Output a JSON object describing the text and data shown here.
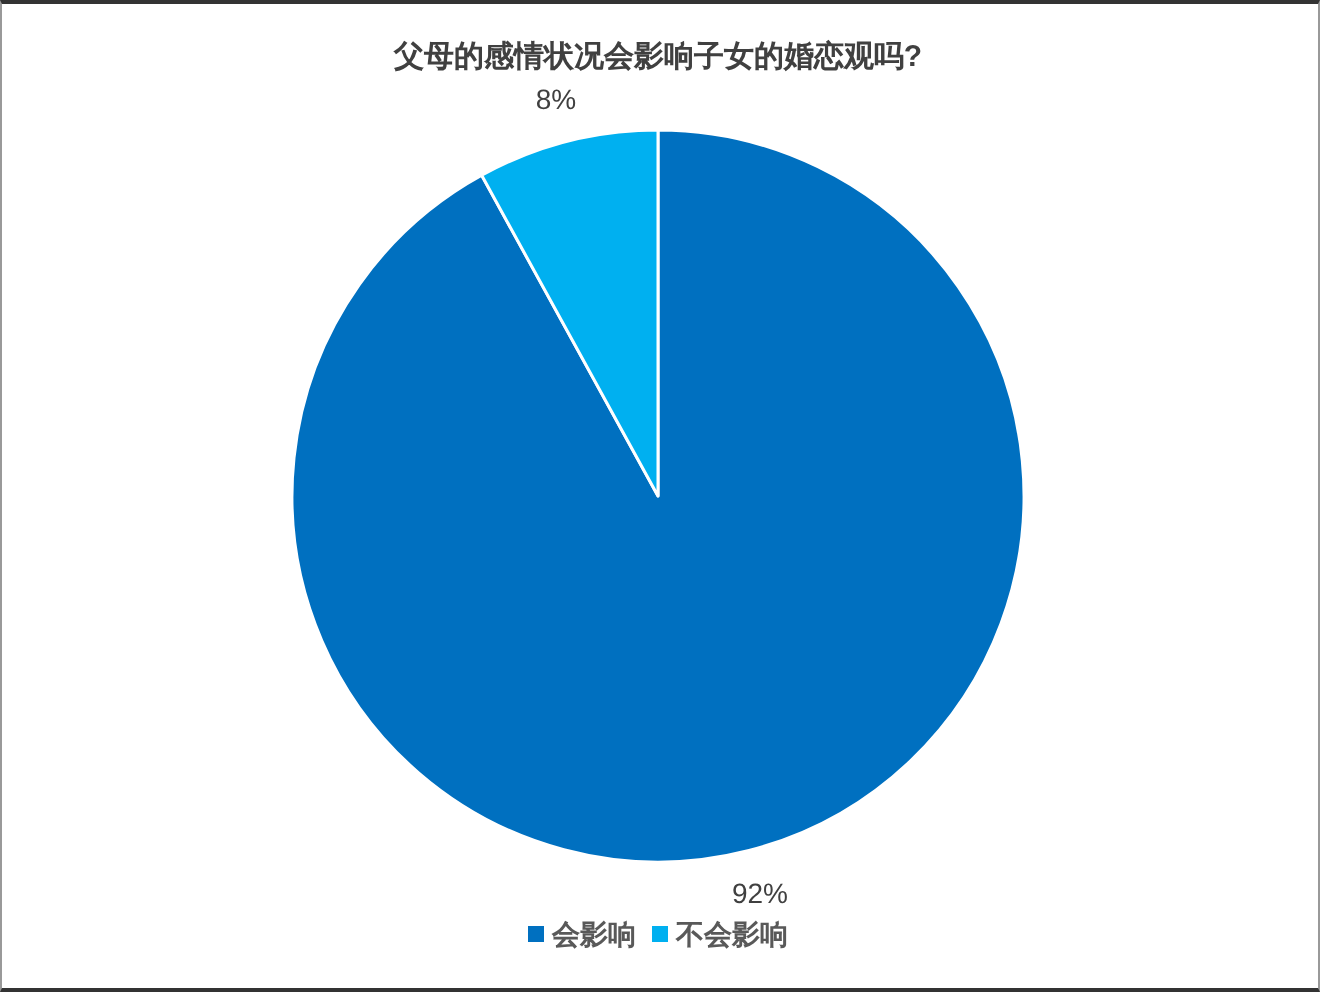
{
  "chart_data": {
    "type": "pie",
    "title": "父母的感情状况会影响子女的婚恋观吗?",
    "categories": [
      "会影响",
      "不会影响"
    ],
    "values": [
      92,
      8
    ],
    "colors": [
      "#0070c0",
      "#00b0f0"
    ],
    "value_labels": [
      "92%",
      "8%"
    ],
    "legend": "bottom"
  }
}
